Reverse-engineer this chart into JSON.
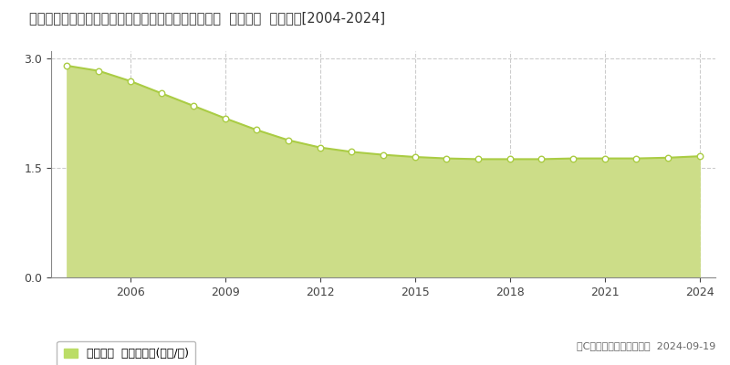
{
  "title": "熊本県球磨郡錦町大字一武字狩政下２６０５番１３外  基準地価  地価推移[2004-2024]",
  "years": [
    2004,
    2005,
    2006,
    2007,
    2008,
    2009,
    2010,
    2011,
    2012,
    2013,
    2014,
    2015,
    2016,
    2017,
    2018,
    2019,
    2020,
    2021,
    2022,
    2023,
    2024
  ],
  "values": [
    2.9,
    2.83,
    2.69,
    2.52,
    2.35,
    2.18,
    2.02,
    1.88,
    1.78,
    1.72,
    1.68,
    1.65,
    1.63,
    1.62,
    1.62,
    1.62,
    1.63,
    1.63,
    1.63,
    1.64,
    1.66
  ],
  "ylim": [
    0,
    3.1
  ],
  "yticks": [
    0,
    1.5,
    3
  ],
  "xticks": [
    2006,
    2009,
    2012,
    2015,
    2018,
    2021,
    2024
  ],
  "xlim_min": 2003.5,
  "xlim_max": 2024.5,
  "line_color": "#aacc44",
  "fill_color": "#ccdd88",
  "marker_facecolor": "#ffffff",
  "marker_edgecolor": "#aacc44",
  "grid_color": "#cccccc",
  "background_color": "#ffffff",
  "legend_label": "基準地価  平均坪単価(万円/坪)",
  "legend_color": "#bbdd66",
  "copyright_text": "（C）土地価格ドットコム  2024-09-19",
  "title_fontsize": 10.5,
  "axis_fontsize": 9,
  "legend_fontsize": 9,
  "copyright_fontsize": 8
}
